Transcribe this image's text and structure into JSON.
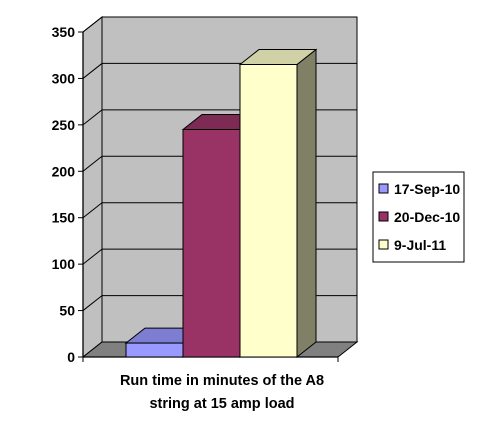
{
  "chart_data": {
    "type": "bar",
    "style": "3d-column",
    "title": "",
    "xlabel_lines": [
      "Run time in minutes of the A8",
      "string at 15 amp load"
    ],
    "ylabel": "",
    "ylim": [
      0,
      350
    ],
    "yticks": [
      0,
      50,
      100,
      150,
      200,
      250,
      300,
      350
    ],
    "grid": true,
    "legend_position": "right",
    "plot_wall_color": "#c0c0c0",
    "floor_color": "#808080",
    "series": [
      {
        "name": "17-Sep-10",
        "value": 15,
        "color": "#9999ff"
      },
      {
        "name": "20-Dec-10",
        "value": 245,
        "color": "#993366"
      },
      {
        "name": "9-Jul-11",
        "value": 315,
        "color": "#ffffcc"
      }
    ]
  }
}
